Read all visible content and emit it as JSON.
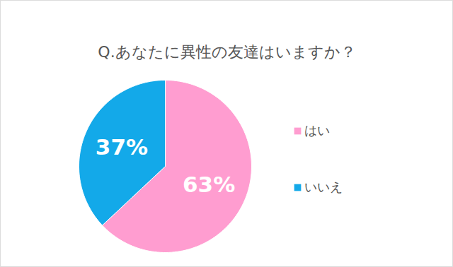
{
  "chart_data": {
    "type": "pie",
    "title": "Q.あなたに異性の友達はいますか？",
    "categories": [
      "はい",
      "いいえ"
    ],
    "values": [
      63,
      37
    ],
    "value_labels": [
      "63%",
      "37%"
    ],
    "colors": [
      "#ff9dd0",
      "#13a9e9"
    ],
    "data_labels": true,
    "legend": "right"
  }
}
